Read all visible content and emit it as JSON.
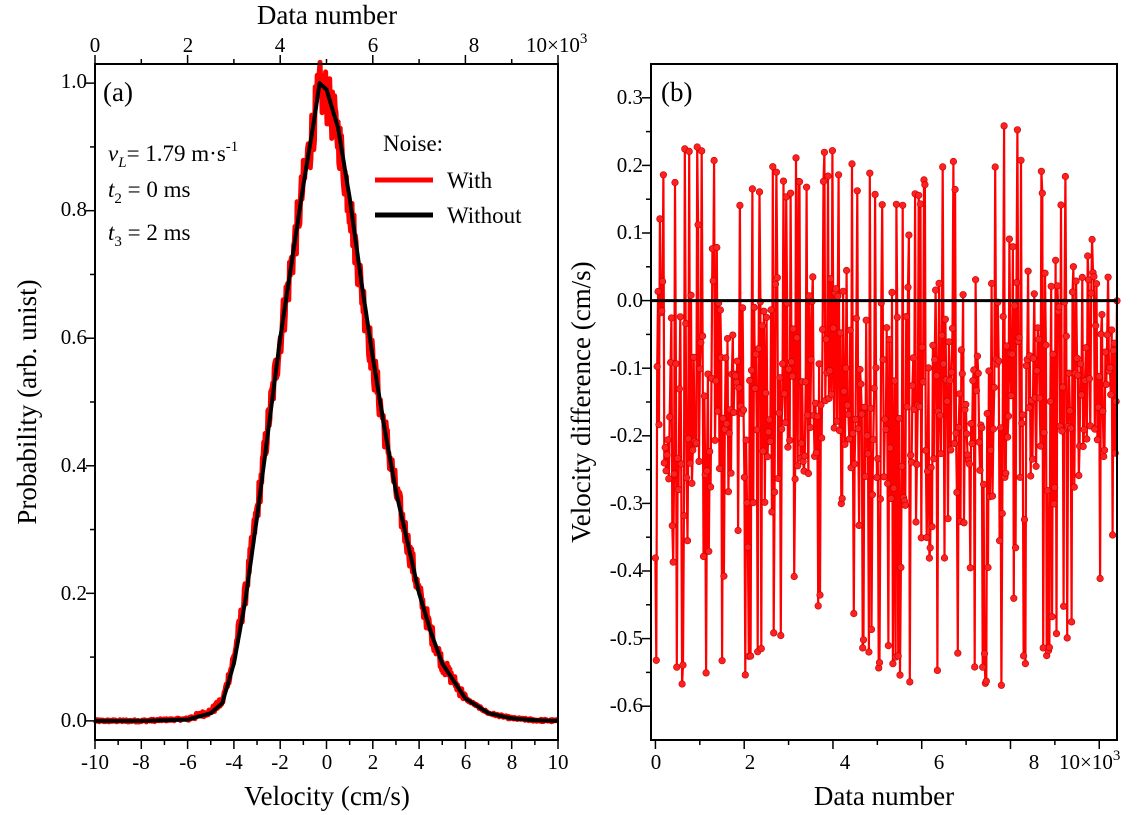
{
  "chart_data": [
    {
      "panel_label": "(a)",
      "type": "line",
      "xlabel": "Velocity (cm/s)",
      "ylabel": "Probability (arb. unist)",
      "top_xlabel": "Data number",
      "xlim": [
        -10,
        10
      ],
      "ylim": [
        -0.03,
        1.03
      ],
      "top_xlim": [
        0,
        10000
      ],
      "x_ticks": [
        "-10",
        "-8",
        "-6",
        "-4",
        "-2",
        "0",
        "2",
        "4",
        "6",
        "8",
        "10"
      ],
      "y_ticks": [
        "0.0",
        "0.2",
        "0.4",
        "0.6",
        "0.8",
        "1.0"
      ],
      "top_x_ticks": [
        "0",
        "2",
        "4",
        "6",
        "8"
      ],
      "top_multiplier": "10×10",
      "top_multiplier_exp": "3",
      "annotations": {
        "vL": {
          "symbol": "v",
          "sub": "L",
          "text": "= 1.79 m·s",
          "sup": "-1"
        },
        "t2": {
          "symbol": "t",
          "sub": "2",
          "text": " = 0 ms"
        },
        "t3": {
          "symbol": "t",
          "sub": "3",
          "text": " = 2 ms"
        }
      },
      "legend_title": "Noise:",
      "legend_position": "top-right",
      "series": [
        {
          "name": "With",
          "color": "#ff0000",
          "x": [
            -10,
            -8,
            -6,
            -5,
            -4.5,
            -4,
            -3.5,
            -3,
            -2.5,
            -2,
            -1.5,
            -1,
            -0.5,
            -0.3,
            0,
            0.5,
            1,
            1.5,
            2,
            2.5,
            3,
            3.5,
            4,
            4.5,
            5,
            6,
            7,
            8,
            9,
            10
          ],
          "y": [
            0.0,
            0.0,
            0.003,
            0.015,
            0.03,
            0.1,
            0.2,
            0.33,
            0.47,
            0.6,
            0.72,
            0.84,
            0.95,
            0.99,
            0.98,
            0.92,
            0.81,
            0.68,
            0.56,
            0.46,
            0.36,
            0.28,
            0.2,
            0.14,
            0.09,
            0.035,
            0.012,
            0.004,
            0.001,
            0.0
          ]
        },
        {
          "name": "Without",
          "color": "#000000",
          "x": [
            -10,
            -8,
            -6,
            -5,
            -4.5,
            -4,
            -3.5,
            -3,
            -2.5,
            -2,
            -1.5,
            -1,
            -0.5,
            -0.3,
            0,
            0.5,
            1,
            1.5,
            2,
            2.5,
            3,
            3.5,
            4,
            4.5,
            5,
            6,
            7,
            8,
            9,
            10
          ],
          "y": [
            0.0,
            0.0,
            0.002,
            0.012,
            0.028,
            0.09,
            0.19,
            0.32,
            0.46,
            0.6,
            0.72,
            0.84,
            0.95,
            1.0,
            0.99,
            0.93,
            0.82,
            0.69,
            0.57,
            0.46,
            0.36,
            0.28,
            0.2,
            0.14,
            0.09,
            0.035,
            0.012,
            0.004,
            0.001,
            0.0
          ]
        }
      ]
    },
    {
      "panel_label": "(b)",
      "type": "line",
      "xlabel": "Data number",
      "ylabel": "Velocity difference (cm/s)",
      "xlim": [
        -100,
        10400
      ],
      "ylim": [
        -0.65,
        0.35
      ],
      "x_ticks": [
        "0",
        "2",
        "4",
        "6",
        "8"
      ],
      "x_multiplier": "10×10",
      "x_multiplier_exp": "3",
      "y_ticks": [
        "-0.6",
        "-0.5",
        "-0.4",
        "-0.3",
        "-0.2",
        "-0.1",
        "0.0",
        "0.1",
        "0.2",
        "0.3"
      ],
      "reference_line": 0.0,
      "series": [
        {
          "color": "#ff0000",
          "x": [
            0,
            1000,
            2000,
            3000,
            4000,
            5000,
            6000,
            7000,
            8000,
            9000,
            10000,
            10400
          ],
          "y_max": [
            0.17,
            0.26,
            0.19,
            0.21,
            0.23,
            0.19,
            0.2,
            0.21,
            0.27,
            0.19,
            0.24,
            0.16
          ],
          "y_min": [
            -0.58,
            -0.56,
            -0.57,
            -0.49,
            -0.47,
            -0.55,
            -0.59,
            -0.56,
            -0.6,
            -0.52,
            -0.47,
            -0.37
          ],
          "y_mean": [
            -0.15,
            -0.15,
            -0.16,
            -0.14,
            -0.15,
            -0.17,
            -0.18,
            -0.17,
            -0.15,
            -0.13,
            -0.11,
            -0.12
          ]
        }
      ]
    }
  ]
}
